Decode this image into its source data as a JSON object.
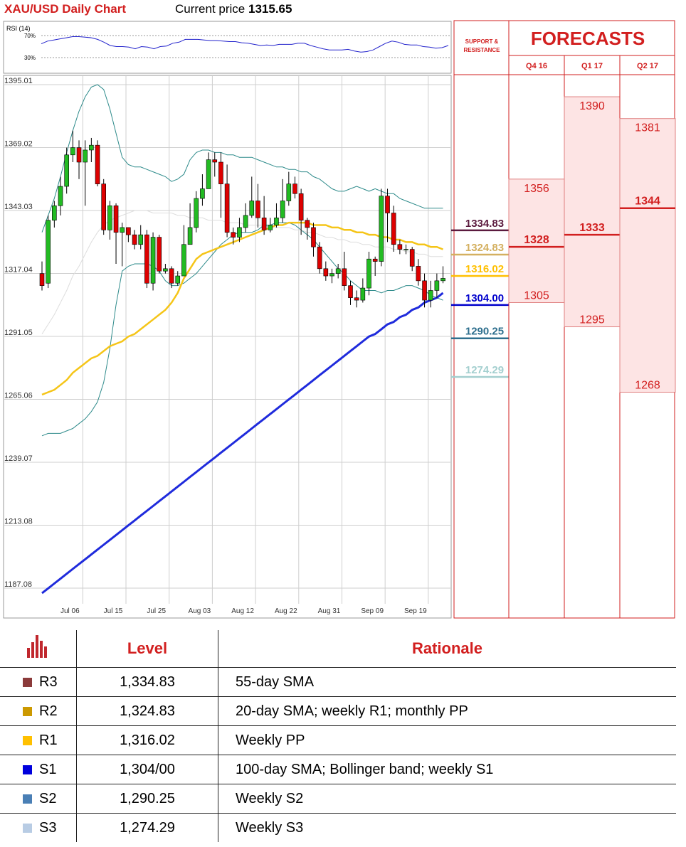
{
  "header": {
    "title": "XAU/USD Daily Chart",
    "price_label": "Current price",
    "price_value": "1315.65"
  },
  "rsi": {
    "label": "RSI (14)",
    "levels": [
      "70%",
      "30%"
    ],
    "values": [
      55,
      60,
      62,
      64,
      66,
      68,
      68,
      67,
      66,
      63,
      58,
      52,
      50,
      50,
      49,
      46,
      50,
      49,
      46,
      50,
      51,
      56,
      58,
      63,
      63,
      63,
      62,
      61,
      61,
      60,
      59,
      59,
      57,
      56,
      54,
      52,
      53,
      52,
      54,
      54,
      54,
      56,
      56,
      52,
      49,
      46,
      44,
      44,
      44,
      45,
      42,
      40,
      41,
      44,
      50,
      56,
      60,
      58,
      54,
      53,
      53,
      50,
      49,
      47,
      48,
      52
    ]
  },
  "chart_data": {
    "type": "candlestick",
    "title": "XAU/USD Daily Chart",
    "y_ticks": [
      "1395.01",
      "1369.02",
      "1343.03",
      "1317.04",
      "1291.05",
      "1265.06",
      "1239.07",
      "1213.08",
      "1187.08"
    ],
    "ylim": [
      1185,
      1398
    ],
    "x_labels": [
      "Jul 06",
      "Jul 15",
      "Jul 25",
      "Aug 03",
      "Aug 12",
      "Aug 22",
      "Aug 31",
      "Sep 09",
      "Sep 19"
    ],
    "x_label_index": [
      2,
      9,
      16,
      23,
      30,
      37,
      44,
      51,
      58
    ],
    "candles": [
      [
        1317,
        1312,
        1322,
        1310
      ],
      [
        1313,
        1339,
        1341,
        1311
      ],
      [
        1339,
        1345,
        1347,
        1336
      ],
      [
        1345,
        1353,
        1357,
        1341
      ],
      [
        1353,
        1366,
        1369,
        1350
      ],
      [
        1366,
        1369,
        1376,
        1363
      ],
      [
        1369,
        1363,
        1372,
        1356
      ],
      [
        1363,
        1368,
        1372,
        1345
      ],
      [
        1368,
        1370,
        1373,
        1363
      ],
      [
        1370,
        1354,
        1372,
        1353
      ],
      [
        1354,
        1335,
        1356,
        1333
      ],
      [
        1335,
        1345,
        1347,
        1331
      ],
      [
        1345,
        1334,
        1346,
        1321
      ],
      [
        1334,
        1336,
        1338,
        1320
      ],
      [
        1336,
        1333,
        1336,
        1330
      ],
      [
        1333,
        1329,
        1335,
        1327
      ],
      [
        1329,
        1333,
        1337,
        1327
      ],
      [
        1333,
        1313,
        1335,
        1311
      ],
      [
        1313,
        1332,
        1334,
        1310
      ],
      [
        1332,
        1318,
        1333,
        1317
      ],
      [
        1318,
        1319,
        1321,
        1317
      ],
      [
        1319,
        1313,
        1320,
        1311
      ],
      [
        1313,
        1316,
        1318,
        1312
      ],
      [
        1316,
        1329,
        1337,
        1316
      ],
      [
        1329,
        1336,
        1346,
        1329
      ],
      [
        1336,
        1348,
        1351,
        1334
      ],
      [
        1348,
        1352,
        1358,
        1345
      ],
      [
        1352,
        1364,
        1367,
        1353
      ],
      [
        1364,
        1363,
        1367,
        1357
      ],
      [
        1363,
        1354,
        1367,
        1340
      ],
      [
        1354,
        1334,
        1362,
        1332
      ],
      [
        1334,
        1332,
        1336,
        1329
      ],
      [
        1332,
        1336,
        1340,
        1330
      ],
      [
        1336,
        1341,
        1346,
        1334
      ],
      [
        1341,
        1347,
        1357,
        1340
      ],
      [
        1347,
        1340,
        1354,
        1336
      ],
      [
        1340,
        1335,
        1349,
        1333
      ],
      [
        1335,
        1337,
        1340,
        1334
      ],
      [
        1337,
        1340,
        1346,
        1336
      ],
      [
        1340,
        1347,
        1356,
        1338
      ],
      [
        1347,
        1354,
        1359,
        1345
      ],
      [
        1354,
        1350,
        1357,
        1348
      ],
      [
        1350,
        1339,
        1352,
        1333
      ],
      [
        1339,
        1336,
        1340,
        1331
      ],
      [
        1336,
        1328,
        1338,
        1324
      ],
      [
        1328,
        1319,
        1330,
        1317
      ],
      [
        1319,
        1316,
        1322,
        1314
      ],
      [
        1316,
        1317,
        1319,
        1313
      ],
      [
        1317,
        1319,
        1321,
        1315
      ],
      [
        1319,
        1312,
        1326,
        1310
      ],
      [
        1312,
        1307,
        1314,
        1304
      ],
      [
        1307,
        1306,
        1310,
        1303
      ],
      [
        1306,
        1311,
        1315,
        1305
      ],
      [
        1311,
        1323,
        1326,
        1308
      ],
      [
        1323,
        1322,
        1324,
        1316
      ],
      [
        1322,
        1349,
        1352,
        1320
      ],
      [
        1349,
        1342,
        1352,
        1330
      ],
      [
        1342,
        1329,
        1345,
        1326
      ],
      [
        1329,
        1327,
        1331,
        1325
      ],
      [
        1327,
        1327,
        1329,
        1325
      ],
      [
        1327,
        1320,
        1328,
        1318
      ],
      [
        1320,
        1314,
        1323,
        1312
      ],
      [
        1314,
        1306,
        1317,
        1303
      ],
      [
        1306,
        1310,
        1314,
        1303
      ],
      [
        1310,
        1314,
        1317,
        1307
      ],
      [
        1314,
        1315,
        1320,
        1313
      ]
    ],
    "overlays": {
      "sma_55": [
        1267,
        1268,
        1269,
        1271,
        1273,
        1276,
        1278,
        1280,
        1282,
        1283,
        1285,
        1287,
        1288,
        1289,
        1291,
        1292,
        1294,
        1296,
        1298,
        1300,
        1302,
        1305,
        1309,
        1315,
        1319,
        1323,
        1325,
        1326,
        1327,
        1328,
        1329,
        1330,
        1331,
        1332,
        1333,
        1334,
        1335,
        1336,
        1337,
        1337,
        1338,
        1338,
        1338,
        1338,
        1337,
        1337,
        1337,
        1336,
        1336,
        1335,
        1335,
        1334,
        1334,
        1333,
        1333,
        1332,
        1332,
        1331,
        1331,
        1330,
        1330,
        1329,
        1329,
        1328,
        1328,
        1327
      ],
      "sma_100": [
        1185,
        1187,
        1189,
        1191,
        1193,
        1195,
        1197,
        1199,
        1201,
        1203,
        1205,
        1207,
        1209,
        1211,
        1213,
        1215,
        1217,
        1219,
        1221,
        1223,
        1225,
        1227,
        1229,
        1231,
        1233,
        1235,
        1237,
        1239,
        1241,
        1243,
        1245,
        1247,
        1249,
        1251,
        1253,
        1255,
        1257,
        1259,
        1261,
        1263,
        1265,
        1267,
        1269,
        1271,
        1273,
        1275,
        1277,
        1279,
        1281,
        1283,
        1285,
        1287,
        1289,
        1291,
        1292,
        1294,
        1296,
        1297,
        1299,
        1300,
        1302,
        1303,
        1305,
        1306,
        1307,
        1309
      ],
      "sma_20": [
        1292,
        1296,
        1300,
        1305,
        1310,
        1316,
        1320,
        1325,
        1330,
        1334,
        1337,
        1339,
        1340,
        1341,
        1342,
        1343,
        1343,
        1343,
        1342,
        1342,
        1342,
        1342,
        1341,
        1341,
        1340,
        1340,
        1340,
        1339,
        1339,
        1339,
        1338,
        1338,
        1338,
        1337,
        1337,
        1337,
        1337,
        1336,
        1336,
        1336,
        1336,
        1335,
        1335,
        1334,
        1334,
        1333,
        1332,
        1332,
        1331,
        1331,
        1330,
        1330,
        1329,
        1329,
        1328,
        1328,
        1328,
        1327,
        1327,
        1326,
        1326,
        1325,
        1325,
        1324,
        1324,
        1324
      ],
      "bb_upper": [
        1334,
        1341,
        1348,
        1357,
        1367,
        1376,
        1384,
        1390,
        1394,
        1395,
        1393,
        1385,
        1375,
        1365,
        1362,
        1361,
        1361,
        1360,
        1359,
        1358,
        1357,
        1355,
        1356,
        1358,
        1364,
        1367,
        1368,
        1368,
        1367,
        1367,
        1366,
        1366,
        1365,
        1365,
        1365,
        1364,
        1363,
        1362,
        1361,
        1361,
        1360,
        1360,
        1359,
        1359,
        1357,
        1356,
        1354,
        1352,
        1351,
        1351,
        1352,
        1353,
        1352,
        1351,
        1352,
        1351,
        1350,
        1350,
        1348,
        1347,
        1346,
        1345,
        1344,
        1344,
        1344,
        1344
      ],
      "bb_lower": [
        1250,
        1251,
        1251,
        1251,
        1252,
        1253,
        1255,
        1257,
        1260,
        1264,
        1272,
        1286,
        1304,
        1318,
        1320,
        1321,
        1321,
        1321,
        1320,
        1318,
        1314,
        1312,
        1312,
        1313,
        1315,
        1317,
        1320,
        1323,
        1326,
        1329,
        1331,
        1333,
        1334,
        1334,
        1334,
        1335,
        1337,
        1337,
        1338,
        1338,
        1338,
        1337,
        1335,
        1333,
        1331,
        1328,
        1325,
        1322,
        1319,
        1317,
        1314,
        1312,
        1310,
        1310,
        1310,
        1309,
        1310,
        1310,
        1311,
        1312,
        1312,
        1311,
        1310,
        1308,
        1307,
        1306
      ]
    }
  },
  "support_resistance": {
    "header": "SUPPORT & RESISTANCE",
    "levels": [
      {
        "value": "1334.83",
        "price": 1334.83,
        "color": "#5b1a3e"
      },
      {
        "value": "1324.83",
        "price": 1324.83,
        "color": "#d4b060"
      },
      {
        "value": "1316.02",
        "price": 1316.02,
        "color": "#ffc000"
      },
      {
        "value": "1304.00",
        "price": 1304.0,
        "color": "#0000cc"
      },
      {
        "value": "1290.25",
        "price": 1290.25,
        "color": "#2e6f8e"
      },
      {
        "value": "1274.29",
        "price": 1274.29,
        "color": "#a3cfcf"
      }
    ]
  },
  "forecasts": {
    "title": "FORECASTS",
    "columns": [
      {
        "label": "Q4 16",
        "high": "1356",
        "mid": "1328",
        "low": "1305",
        "high_v": 1356,
        "mid_v": 1328,
        "low_v": 1305
      },
      {
        "label": "Q1 17",
        "high": "1390",
        "mid": "1333",
        "low": "1295",
        "high_v": 1390,
        "mid_v": 1333,
        "low_v": 1295
      },
      {
        "label": "Q2 17",
        "high": "1381",
        "mid": "1344",
        "low": "1268",
        "high_v": 1381,
        "mid_v": 1344,
        "low_v": 1268
      }
    ]
  },
  "levels_table": {
    "headers": [
      "Level",
      "Rationale"
    ],
    "rows": [
      {
        "code": "R3",
        "color": "#8b3a3a",
        "level": "1,334.83",
        "rationale": "55-day SMA"
      },
      {
        "code": "R2",
        "color": "#cc9900",
        "level": "1,324.83",
        "rationale": "20-day SMA; weekly R1; monthly PP"
      },
      {
        "code": "R1",
        "color": "#ffc000",
        "level": "1,316.02",
        "rationale": "Weekly PP"
      },
      {
        "code": "S1",
        "color": "#0000dd",
        "level": "1,304/00",
        "rationale": "100-day SMA; Bollinger band; weekly S1"
      },
      {
        "code": "S2",
        "color": "#4a7fb5",
        "level": "1,290.25",
        "rationale": "Weekly S2"
      },
      {
        "code": "S3",
        "color": "#b8cce4",
        "level": "1,274.29",
        "rationale": "Weekly S3"
      }
    ]
  }
}
